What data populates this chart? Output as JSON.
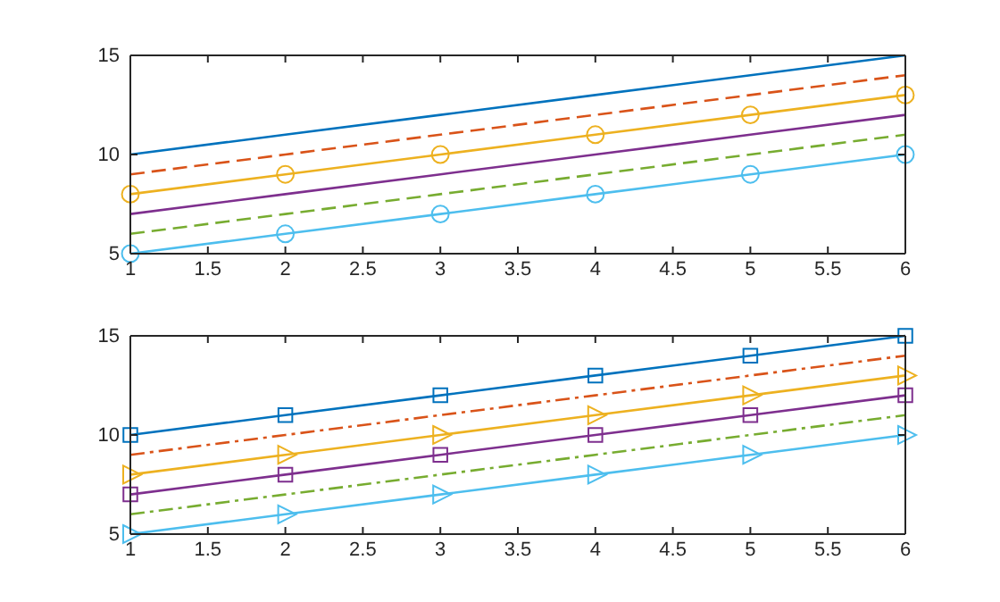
{
  "chart_data": [
    {
      "type": "line",
      "x": [
        1,
        2,
        3,
        4,
        5,
        6
      ],
      "xlim": [
        1,
        6
      ],
      "xticks": [
        1,
        1.5,
        2,
        2.5,
        3,
        3.5,
        4,
        4.5,
        5,
        5.5,
        6
      ],
      "ylim": [
        5,
        15
      ],
      "yticks": [
        5,
        10,
        15
      ],
      "grid": false,
      "series": [
        {
          "color": "#0072bd",
          "values": [
            10,
            11,
            12,
            13,
            14,
            15
          ],
          "line_style": "solid",
          "marker": "none"
        },
        {
          "color": "#d95319",
          "values": [
            9,
            10,
            11,
            12,
            13,
            14
          ],
          "line_style": "dashed",
          "marker": "none"
        },
        {
          "color": "#edb120",
          "values": [
            8,
            9,
            10,
            11,
            12,
            13
          ],
          "line_style": "solid",
          "marker": "circle"
        },
        {
          "color": "#7e2f8e",
          "values": [
            7,
            8,
            9,
            10,
            11,
            12
          ],
          "line_style": "solid",
          "marker": "none"
        },
        {
          "color": "#77ac30",
          "values": [
            6,
            7,
            8,
            9,
            10,
            11
          ],
          "line_style": "dashed",
          "marker": "none"
        },
        {
          "color": "#4dbeee",
          "values": [
            5,
            6,
            7,
            8,
            9,
            10
          ],
          "line_style": "solid",
          "marker": "circle"
        }
      ]
    },
    {
      "type": "line",
      "x": [
        1,
        2,
        3,
        4,
        5,
        6
      ],
      "xlim": [
        1,
        6
      ],
      "xticks": [
        1,
        1.5,
        2,
        2.5,
        3,
        3.5,
        4,
        4.5,
        5,
        5.5,
        6
      ],
      "ylim": [
        5,
        15
      ],
      "yticks": [
        5,
        10,
        15
      ],
      "grid": false,
      "series": [
        {
          "color": "#0072bd",
          "values": [
            10,
            11,
            12,
            13,
            14,
            15
          ],
          "line_style": "solid",
          "marker": "square"
        },
        {
          "color": "#d95319",
          "values": [
            9,
            10,
            11,
            12,
            13,
            14
          ],
          "line_style": "dashdot",
          "marker": "none"
        },
        {
          "color": "#edb120",
          "values": [
            8,
            9,
            10,
            11,
            12,
            13
          ],
          "line_style": "solid",
          "marker": "triangle"
        },
        {
          "color": "#7e2f8e",
          "values": [
            7,
            8,
            9,
            10,
            11,
            12
          ],
          "line_style": "solid",
          "marker": "square"
        },
        {
          "color": "#77ac30",
          "values": [
            6,
            7,
            8,
            9,
            10,
            11
          ],
          "line_style": "dashdot",
          "marker": "none"
        },
        {
          "color": "#4dbeee",
          "values": [
            5,
            6,
            7,
            8,
            9,
            10
          ],
          "line_style": "solid",
          "marker": "triangle"
        }
      ]
    }
  ]
}
